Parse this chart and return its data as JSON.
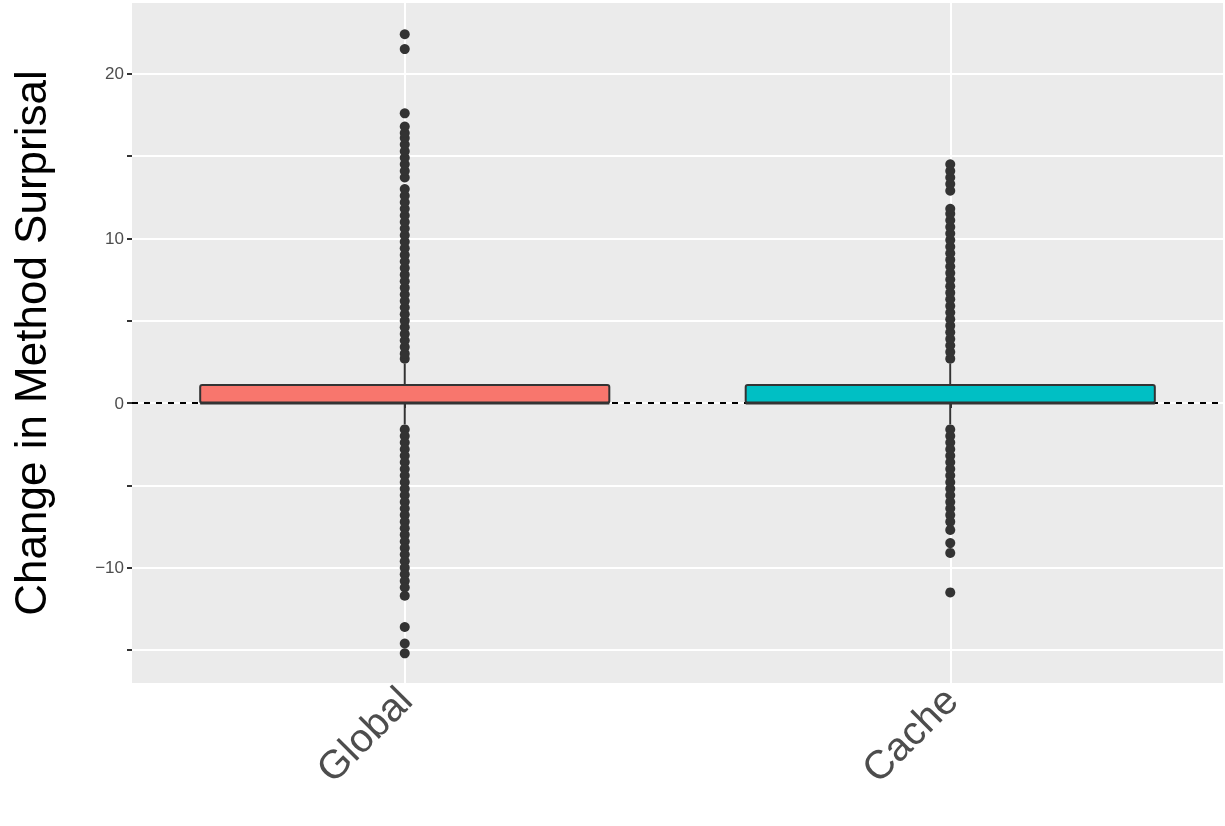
{
  "chart_data": {
    "type": "box",
    "ylabel": "Change in Method Surprisal",
    "categories": [
      "Global",
      "Cache"
    ],
    "colors": [
      "#f8766d",
      "#00bfc4"
    ],
    "boxes": [
      {
        "low": -1.3,
        "q1": 0,
        "median": 0,
        "q3": 1.1,
        "high": 2.4,
        "outliers": [
          2.7,
          3.0,
          3.4,
          3.8,
          4.2,
          4.6,
          5.0,
          5.4,
          5.8,
          6.2,
          6.6,
          7.0,
          7.4,
          7.8,
          8.2,
          8.6,
          9.0,
          9.4,
          9.8,
          10.2,
          10.6,
          11.0,
          11.4,
          11.8,
          12.2,
          12.6,
          13.0,
          13.7,
          14.1,
          14.5,
          14.9,
          15.3,
          15.7,
          16.1,
          16.4,
          16.8,
          17.6,
          21.5,
          22.4,
          -1.6,
          -2.0,
          -2.4,
          -2.8,
          -3.2,
          -3.6,
          -4.0,
          -4.4,
          -4.8,
          -5.2,
          -5.6,
          -6.0,
          -6.4,
          -6.8,
          -7.2,
          -7.6,
          -8.0,
          -8.4,
          -8.8,
          -9.2,
          -9.6,
          -10.0,
          -10.4,
          -10.8,
          -11.2,
          -11.7,
          -13.6,
          -14.6,
          -15.2
        ]
      },
      {
        "low": -1.3,
        "q1": 0,
        "median": 0,
        "q3": 1.1,
        "high": 2.4,
        "outliers": [
          2.7,
          3.1,
          3.5,
          3.9,
          4.3,
          4.7,
          5.1,
          5.5,
          5.9,
          6.3,
          6.7,
          7.1,
          7.5,
          7.9,
          8.3,
          8.7,
          9.1,
          9.5,
          9.9,
          10.3,
          10.7,
          11.1,
          11.5,
          11.8,
          12.9,
          13.3,
          13.7,
          14.1,
          14.5,
          -1.6,
          -2.0,
          -2.4,
          -2.8,
          -3.2,
          -3.6,
          -4.0,
          -4.4,
          -4.8,
          -5.2,
          -5.6,
          -6.0,
          -6.4,
          -6.8,
          -7.2,
          -7.7,
          -8.5,
          -9.1,
          -11.5
        ]
      }
    ],
    "ylim": [
      -17,
      24.3
    ],
    "yticks": [
      {
        "value": -15,
        "label": null
      },
      -10,
      {
        "value": -5,
        "label": null
      },
      0,
      {
        "value": 5,
        "label": null
      },
      10,
      {
        "value": 15,
        "label": null
      },
      20
    ],
    "ref_lines": [
      {
        "axis": "y",
        "value": 0,
        "color": "#000000",
        "line_style": "dashed"
      }
    ],
    "grid": true
  }
}
